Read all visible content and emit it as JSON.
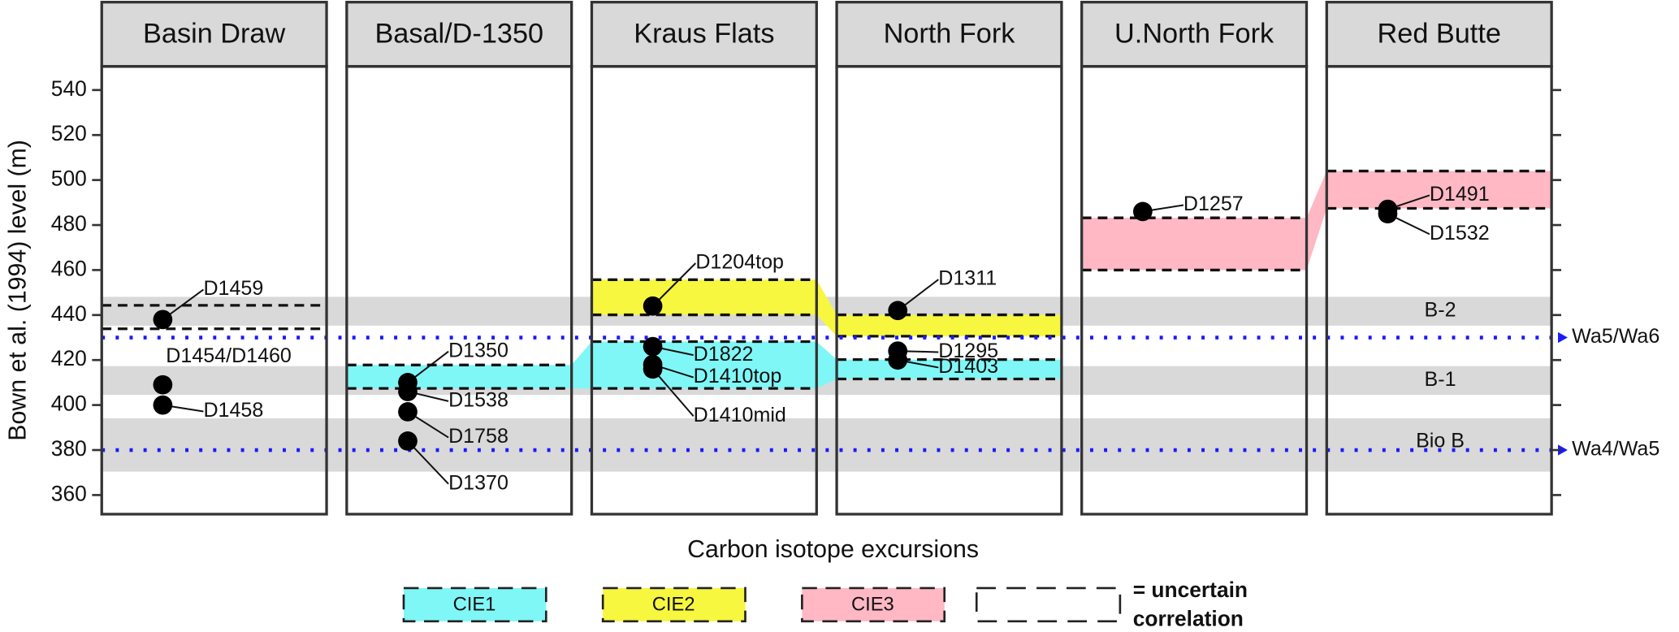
{
  "chart_data": {
    "type": "strat-panels",
    "y_label": "Bown et al. (1994) level (m)",
    "x_label": "Carbon isotope excursions",
    "ylim": [
      351.5,
      550.5
    ],
    "yticks": [
      360,
      380,
      400,
      420,
      440,
      460,
      480,
      500,
      520,
      540
    ],
    "panels": [
      {
        "name": "Basin Draw",
        "samples": [
          {
            "label": "D1459",
            "level": 438
          },
          {
            "label": "D1454/D1460",
            "level": 409
          },
          {
            "label": "D1458",
            "level": 400
          }
        ],
        "bands": [
          {
            "cie": null,
            "range": [
              433.9,
              444.3
            ]
          }
        ]
      },
      {
        "name": "Basal/D-1350",
        "samples": [
          {
            "label": "D1350",
            "level": 410
          },
          {
            "label": "D1538",
            "level": 406
          },
          {
            "label": "D1758",
            "level": 397
          },
          {
            "label": "D1370",
            "level": 384
          }
        ],
        "bands": [
          {
            "cie": "CIE1",
            "range": [
              407.4,
              417.8
            ]
          }
        ]
      },
      {
        "name": "Kraus Flats",
        "samples": [
          {
            "label": "D1204top",
            "level": 444
          },
          {
            "label": "D1822",
            "level": 426
          },
          {
            "label": "D1410top",
            "level": 418
          },
          {
            "label": "D1410mid",
            "level": 416
          }
        ],
        "bands": [
          {
            "cie": "CIE2",
            "range": [
              440.1,
              455.7
            ]
          },
          {
            "cie": "CIE1",
            "range": [
              407.4,
              428.2
            ]
          }
        ]
      },
      {
        "name": "North Fork",
        "samples": [
          {
            "label": "D1311",
            "level": 442
          },
          {
            "label": "D1295",
            "level": 424
          },
          {
            "label": "D1403",
            "level": 420
          }
        ],
        "bands": [
          {
            "cie": "CIE2",
            "range": [
              430.6,
              440.1
            ]
          },
          {
            "cie": "CIE1",
            "range": [
              411.6,
              420.2
            ]
          }
        ]
      },
      {
        "name": "U.North Fork",
        "samples": [
          {
            "label": "D1257",
            "level": 486
          }
        ],
        "bands": [
          {
            "cie": "CIE3",
            "range": [
              460,
              483.2
            ]
          }
        ]
      },
      {
        "name": "Red Butte",
        "samples": [
          {
            "label": "D1491",
            "level": 487
          },
          {
            "label": "D1532",
            "level": 485
          }
        ],
        "bands": [
          {
            "cie": "CIE3",
            "range": [
              487.4,
              504
            ]
          }
        ]
      }
    ],
    "zones": [
      {
        "label": "B-2",
        "range": [
          435.3,
          448.1
        ]
      },
      {
        "label": "B-1",
        "range": [
          404.5,
          417.3
        ]
      },
      {
        "label": "Bio B",
        "range": [
          370.4,
          394.1
        ]
      }
    ],
    "boundaries": [
      {
        "label": "Wa5/Wa6",
        "level": 430,
        "color": "#1a1aff"
      },
      {
        "label": "Wa4/Wa5",
        "level": 380,
        "color": "#1a1aff"
      }
    ],
    "legend": {
      "items": [
        {
          "label": "CIE1",
          "color": "#80f7f7"
        },
        {
          "label": "CIE2",
          "color": "#f7f740"
        },
        {
          "label": "CIE3",
          "color": "#ffb8c4"
        }
      ],
      "uncertain": [
        "= uncertain",
        "correlation"
      ]
    }
  }
}
